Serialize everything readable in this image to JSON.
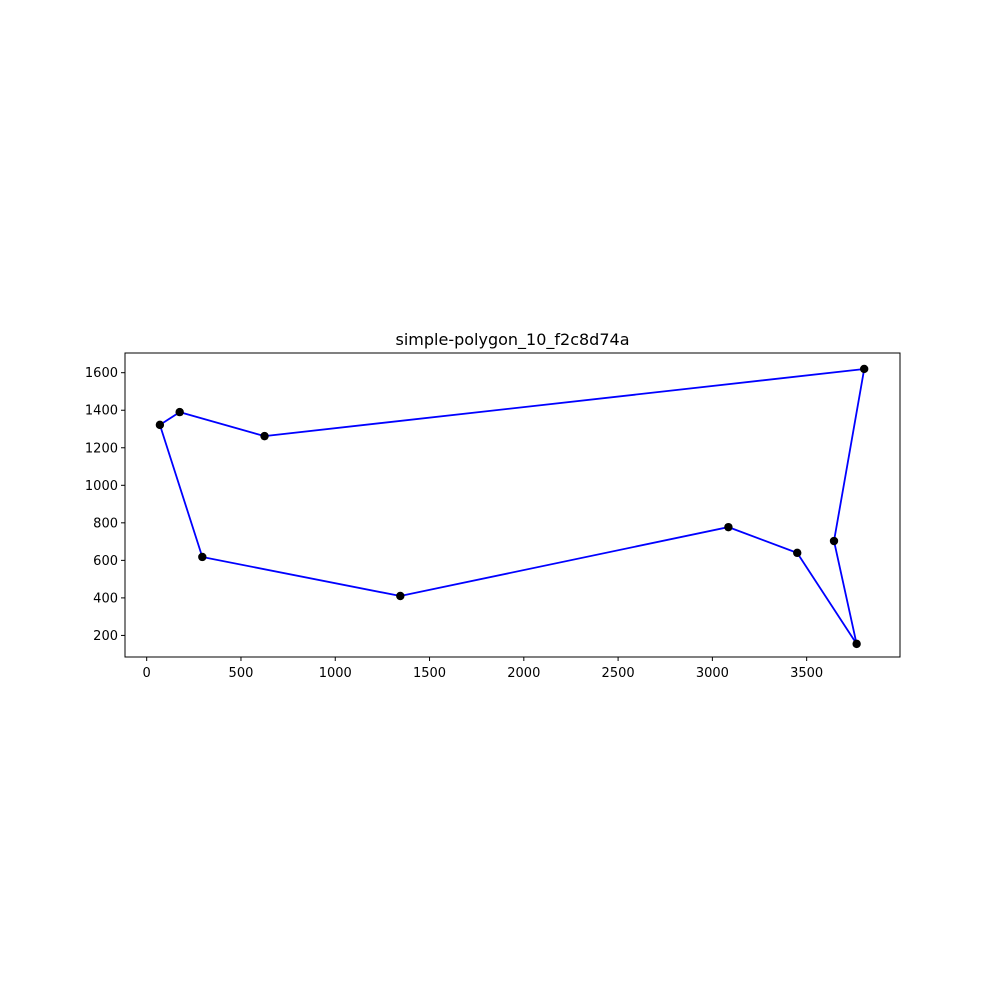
{
  "chart_data": {
    "type": "line",
    "title": "simple-polygon_10_f2c8d74a",
    "xlabel": "",
    "ylabel": "",
    "xlim": [
      -115,
      3995
    ],
    "ylim": [
      85,
      1705
    ],
    "xticks": [
      0,
      500,
      1000,
      1500,
      2000,
      2500,
      3000,
      3500
    ],
    "yticks": [
      200,
      400,
      600,
      800,
      1000,
      1200,
      1400,
      1600
    ],
    "grid": false,
    "closed": true,
    "series": [
      {
        "points": [
          [
            625,
            1262
          ],
          [
            3805,
            1620
          ],
          [
            3645,
            703
          ],
          [
            3765,
            155
          ],
          [
            3450,
            640
          ],
          [
            3085,
            777
          ],
          [
            1345,
            410
          ],
          [
            295,
            618
          ],
          [
            70,
            1322
          ],
          [
            175,
            1390
          ]
        ]
      }
    ],
    "colors": {
      "line": "#0000ff",
      "marker": "#000000"
    }
  }
}
